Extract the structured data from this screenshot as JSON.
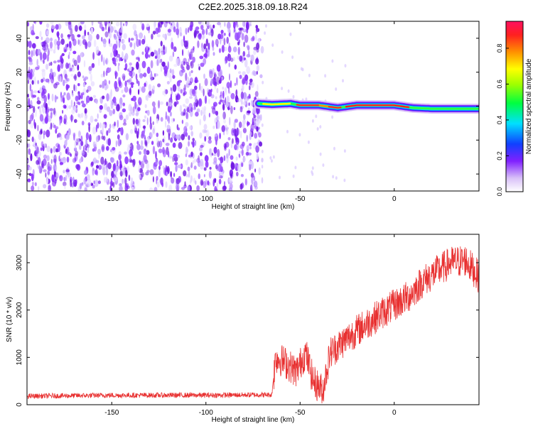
{
  "title": "C2E2.2025.318.09.18.R24",
  "chart_data": [
    {
      "type": "heatmap",
      "xlabel": "Height of straight line (km)",
      "ylabel": "Frequency (Hz)",
      "xlim": [
        -195,
        45
      ],
      "ylim": [
        -50,
        50
      ],
      "x_ticks": [
        -150,
        -100,
        -50,
        0
      ],
      "y_ticks": [
        -40,
        -20,
        0,
        20,
        40
      ],
      "noise_region_x": [
        -195,
        -70
      ],
      "signal_band": [
        {
          "x": -72,
          "f": 1.5
        },
        {
          "x": -65,
          "f": 1
        },
        {
          "x": -55,
          "f": 1.5
        },
        {
          "x": -50,
          "f": 0.5
        },
        {
          "x": -40,
          "f": 0.5
        },
        {
          "x": -30,
          "f": -1
        },
        {
          "x": -20,
          "f": 0.5
        },
        {
          "x": -10,
          "f": 0.5
        },
        {
          "x": 0,
          "f": 0.5
        },
        {
          "x": 10,
          "f": -1
        },
        {
          "x": 20,
          "f": -1.5
        },
        {
          "x": 30,
          "f": -1.5
        },
        {
          "x": 45,
          "f": -1.5
        }
      ],
      "colorbar": {
        "label": "Normalized spectral amplitude",
        "range": [
          0,
          0.95
        ],
        "ticks": [
          0.0,
          0.2,
          0.4,
          0.6,
          0.8
        ],
        "tick_labels": [
          "0.0",
          "0.2",
          "0.4",
          "0.6",
          "0.8"
        ]
      },
      "grid": false
    },
    {
      "type": "line",
      "xlabel": "Height of straight line (km)",
      "ylabel": "SNR (10 * v/v)",
      "xlim": [
        -195,
        45
      ],
      "ylim": [
        0,
        3600
      ],
      "x_ticks": [
        -150,
        -100,
        -50,
        0
      ],
      "y_ticks": [
        0,
        1000,
        2000,
        3000
      ],
      "color": "#e83030",
      "trend": [
        {
          "x": -195,
          "y": 180
        },
        {
          "x": -150,
          "y": 200
        },
        {
          "x": -100,
          "y": 200
        },
        {
          "x": -65,
          "y": 210
        },
        {
          "x": -63,
          "y": 1000
        },
        {
          "x": -58,
          "y": 900
        },
        {
          "x": -52,
          "y": 700
        },
        {
          "x": -47,
          "y": 1100
        },
        {
          "x": -43,
          "y": 500
        },
        {
          "x": -38,
          "y": 300
        },
        {
          "x": -34,
          "y": 1100
        },
        {
          "x": -28,
          "y": 1300
        },
        {
          "x": -22,
          "y": 1500
        },
        {
          "x": -15,
          "y": 1700
        },
        {
          "x": -8,
          "y": 1900
        },
        {
          "x": 0,
          "y": 2100
        },
        {
          "x": 8,
          "y": 2300
        },
        {
          "x": 15,
          "y": 2600
        },
        {
          "x": 22,
          "y": 2800
        },
        {
          "x": 30,
          "y": 3000
        },
        {
          "x": 38,
          "y": 3050
        },
        {
          "x": 45,
          "y": 2700
        }
      ],
      "grid": false
    }
  ],
  "colors": {
    "noise": "#7a20f0",
    "line": "#e83030"
  }
}
